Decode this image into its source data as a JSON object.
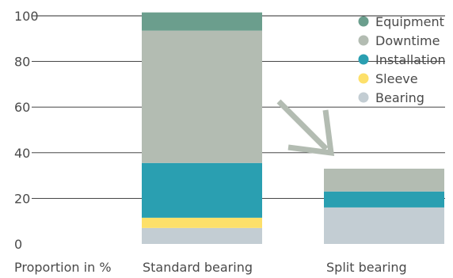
{
  "chart_data": {
    "type": "bar",
    "stacked": true,
    "xlabel": "Proportion in %",
    "categories": [
      "Standard bearing",
      "Split bearing"
    ],
    "ylim": [
      0,
      100
    ],
    "yticks": [
      0,
      20,
      40,
      60,
      80,
      100
    ],
    "grid": true,
    "legend_position": "top-right",
    "series": [
      {
        "name": "Bearing",
        "color": "#c3cdd3",
        "values": [
          7,
          16
        ]
      },
      {
        "name": "Sleeve",
        "color": "#fde06a",
        "values": [
          4.5,
          0
        ]
      },
      {
        "name": "Installation",
        "color": "#2a9fb1",
        "values": [
          24,
          7
        ]
      },
      {
        "name": "Downtime",
        "color": "#b3bcb2",
        "values": [
          58,
          10
        ]
      },
      {
        "name": "Equipment",
        "color": "#6b9e8d",
        "values": [
          8,
          0
        ]
      }
    ],
    "annotation": {
      "type": "arrow",
      "color": "#b3bcb2",
      "direction": "down-right"
    }
  }
}
